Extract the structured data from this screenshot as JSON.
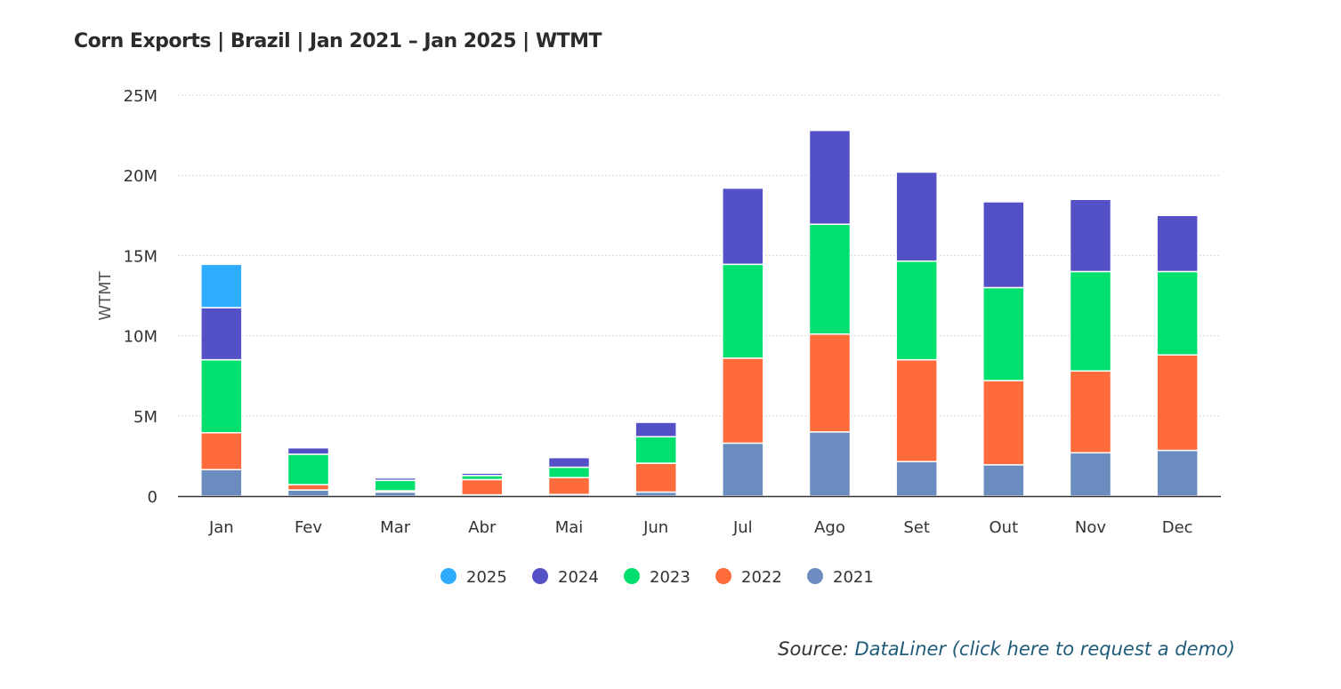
{
  "title": "Corn Exports | Brazil | Jan 2021 – Jan 2025 | WTMT",
  "source": {
    "prefix": "Source: ",
    "link_text": "DataLiner (click here to request a demo)"
  },
  "chart_data": {
    "type": "bar",
    "stacked": true,
    "categories": [
      "Jan",
      "Fev",
      "Mar",
      "Abr",
      "Mai",
      "Jun",
      "Jul",
      "Ago",
      "Set",
      "Out",
      "Nov",
      "Dec"
    ],
    "ylabel": "WTMT",
    "ylim": [
      0,
      25000000
    ],
    "yticks": [
      0,
      5000000,
      10000000,
      15000000,
      20000000,
      25000000
    ],
    "ytick_labels": [
      "0",
      "5M",
      "10M",
      "15M",
      "20M",
      "25M"
    ],
    "grid": true,
    "legend_position": "bottom-center",
    "series": [
      {
        "name": "2021",
        "color": "#6b8cbe",
        "values": [
          1650000,
          380000,
          250000,
          80000,
          100000,
          250000,
          3300000,
          4000000,
          2150000,
          1950000,
          2700000,
          2850000
        ]
      },
      {
        "name": "2022",
        "color": "#ff6b3b",
        "values": [
          2300000,
          330000,
          80000,
          950000,
          1050000,
          1800000,
          5300000,
          6100000,
          6350000,
          5250000,
          5100000,
          5950000
        ]
      },
      {
        "name": "2023",
        "color": "#00e06f",
        "values": [
          4550000,
          1900000,
          650000,
          250000,
          650000,
          1650000,
          5850000,
          6850000,
          6150000,
          5800000,
          6200000,
          5200000
        ]
      },
      {
        "name": "2024",
        "color": "#5450c6",
        "values": [
          3250000,
          400000,
          150000,
          150000,
          600000,
          900000,
          4750000,
          5850000,
          5550000,
          5350000,
          4500000,
          3500000
        ]
      },
      {
        "name": "2025",
        "color": "#2eadff",
        "values": [
          2700000,
          0,
          0,
          0,
          0,
          0,
          0,
          0,
          0,
          0,
          0,
          0
        ]
      }
    ],
    "legend_order": [
      "2025",
      "2024",
      "2023",
      "2022",
      "2021"
    ]
  }
}
